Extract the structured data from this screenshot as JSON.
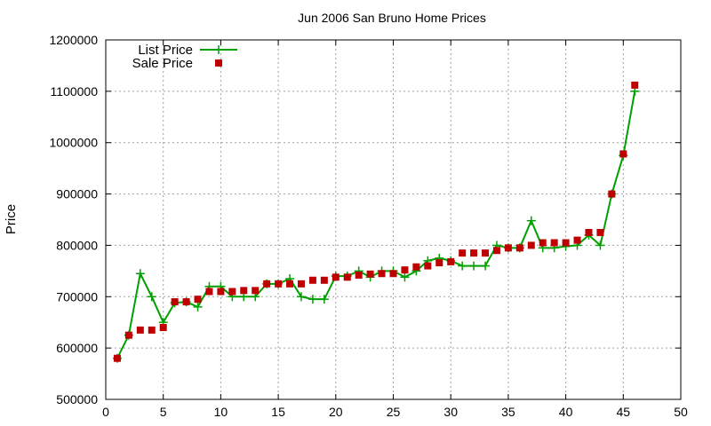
{
  "chart_data": {
    "type": "line",
    "title": "Jun 2006 San Bruno Home Prices",
    "ylabel": "Price",
    "xlabel": "",
    "xlim": [
      0,
      50
    ],
    "ylim": [
      500000,
      1200000
    ],
    "xticks": [
      0,
      5,
      10,
      15,
      20,
      25,
      30,
      35,
      40,
      45,
      50
    ],
    "yticks": [
      500000,
      600000,
      700000,
      800000,
      900000,
      1000000,
      1100000,
      1200000
    ],
    "grid": true,
    "legend_position": "top-left",
    "series": [
      {
        "name": "List Price",
        "style": "line-plus",
        "color": "#00a000",
        "x": [
          1,
          2,
          3,
          4,
          5,
          6,
          7,
          8,
          9,
          10,
          11,
          12,
          13,
          14,
          15,
          16,
          17,
          18,
          19,
          20,
          21,
          22,
          23,
          24,
          25,
          26,
          27,
          28,
          29,
          30,
          31,
          32,
          33,
          34,
          35,
          36,
          37,
          38,
          39,
          40,
          41,
          42,
          43,
          44,
          45,
          46
        ],
        "y": [
          580000,
          625000,
          745000,
          700000,
          650000,
          688000,
          690000,
          680000,
          720000,
          720000,
          700000,
          700000,
          700000,
          725000,
          725000,
          735000,
          700000,
          695000,
          695000,
          740000,
          740000,
          750000,
          738000,
          750000,
          750000,
          738000,
          750000,
          770000,
          775000,
          770000,
          760000,
          760000,
          760000,
          800000,
          795000,
          795000,
          848000,
          795000,
          795000,
          798000,
          800000,
          820000,
          800000,
          900000,
          975000,
          1100000
        ]
      },
      {
        "name": "Sale Price",
        "style": "square-marker",
        "color": "#c00000",
        "x": [
          1,
          2,
          3,
          4,
          5,
          6,
          7,
          8,
          9,
          10,
          11,
          12,
          13,
          14,
          15,
          16,
          17,
          18,
          19,
          20,
          21,
          22,
          23,
          24,
          25,
          26,
          27,
          28,
          29,
          30,
          31,
          32,
          33,
          34,
          35,
          36,
          37,
          38,
          39,
          40,
          41,
          42,
          43,
          44,
          45,
          46
        ],
        "y": [
          580000,
          625000,
          635000,
          635000,
          640000,
          690000,
          690000,
          695000,
          710000,
          710000,
          710000,
          712000,
          712000,
          725000,
          725000,
          725000,
          725000,
          732000,
          732000,
          738000,
          738000,
          742000,
          744000,
          745000,
          745000,
          752000,
          758000,
          760000,
          766000,
          768000,
          785000,
          785000,
          785000,
          790000,
          795000,
          795000,
          800000,
          805000,
          805000,
          805000,
          810000,
          825000,
          825000,
          900000,
          978000,
          1112000
        ]
      }
    ]
  }
}
